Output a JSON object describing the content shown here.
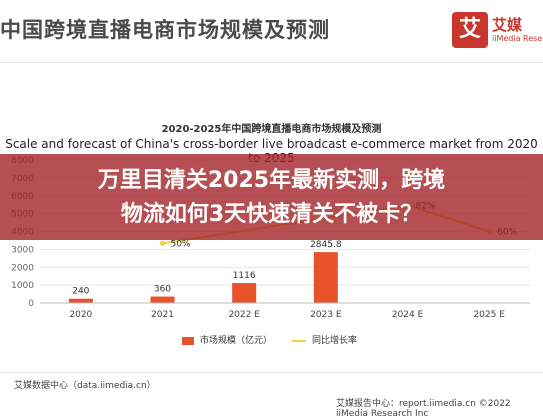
{
  "header": {
    "title": "中国跨境直播电商市场规模及预测",
    "logo_mark": "艾",
    "logo_name": "艾媒",
    "logo_sub": "iiMedia Research"
  },
  "chart_title_cn": "2020-2025年中国跨境直播电商市场规模及预测",
  "chart_title_en": "Scale and forecast of China's cross-border live broadcast e-commerce market from 2020 to 2025",
  "overlay": {
    "line1": "万里目清关2025年最新实测，跨境",
    "line2": "物流如何3天快速清关不被卡？"
  },
  "chart_data": {
    "type": "bar",
    "categories": [
      "2020",
      "2021",
      "2022 E",
      "2023 E",
      "2024 E",
      "2025 E"
    ],
    "series": [
      {
        "name": "市场规模（亿元）",
        "type": "bar",
        "values": [
          240,
          360,
          1116,
          2845.8,
          null,
          null
        ]
      },
      {
        "name": "同比增长率",
        "type": "line",
        "values": [
          null,
          0.5,
          null,
          null,
          0.82,
          0.6
        ]
      }
    ],
    "bar_labels": [
      "240",
      "360",
      "1116",
      "2845.8",
      "",
      ""
    ],
    "line_labels": [
      "",
      "50%",
      "",
      "",
      "82%",
      "60%"
    ],
    "y_ticks": [
      "0",
      "1000",
      "2000",
      "3000",
      "4000",
      "5000",
      "6000",
      "7000",
      "8000"
    ],
    "ylim": [
      0,
      8000
    ],
    "bar_color": "#e8522b",
    "line_color": "#f2cf3f"
  },
  "legend": {
    "bar_label": "市场规模（亿元）",
    "line_label": "同比增长率"
  },
  "footer": {
    "source": "艾媒数据中心（data.iimedia.cn）",
    "report": "艾媒报告中心：report.iimedia.cn ©2022 iiMedia Research Inc"
  }
}
